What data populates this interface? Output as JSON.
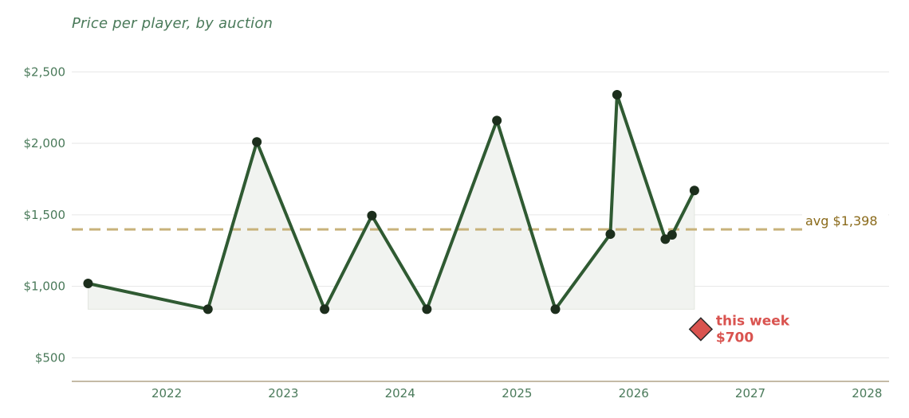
{
  "chart_data": {
    "type": "line",
    "title": "Price per player, by auction",
    "xlabel": "",
    "ylabel": "",
    "x_ticks": [
      "2022",
      "2023",
      "2024",
      "2025",
      "2026",
      "2027",
      "2028"
    ],
    "y_ticks": [
      "$500",
      "$1,000",
      "$1,500",
      "$2,000",
      "$2,500"
    ],
    "xlim": [
      "2021-03-10",
      "2028-03-10"
    ],
    "ylim": [
      335,
      2780
    ],
    "grid": true,
    "series": [
      {
        "points": [
          {
            "x": "2021-04-30",
            "y": 1020
          },
          {
            "x": "2022-05-10",
            "y": 840
          },
          {
            "x": "2022-10-10",
            "y": 2010
          },
          {
            "x": "2023-05-10",
            "y": 840
          },
          {
            "x": "2023-10-05",
            "y": 1495
          },
          {
            "x": "2024-03-25",
            "y": 840
          },
          {
            "x": "2024-10-30",
            "y": 2160
          },
          {
            "x": "2025-05-01",
            "y": 840
          },
          {
            "x": "2025-10-20",
            "y": 1365
          },
          {
            "x": "2025-11-10",
            "y": 2340
          },
          {
            "x": "2026-04-10",
            "y": 1330
          },
          {
            "x": "2026-05-01",
            "y": 1360
          },
          {
            "x": "2026-07-10",
            "y": 1670
          }
        ]
      }
    ],
    "average": {
      "value": 1398,
      "label": "avg $1,398"
    },
    "highlight": {
      "x": "2026-07-30",
      "y": 700,
      "label_line1": "this week",
      "label_line2": "$700"
    },
    "colors": {
      "line": "#2f5a32",
      "marker": "#1c2e1c",
      "fill": "#f1f3f0",
      "avg": "#c8b27a",
      "highlight": "#d9534f",
      "text": "#4a7a5a",
      "axis": "#b0a488"
    }
  }
}
